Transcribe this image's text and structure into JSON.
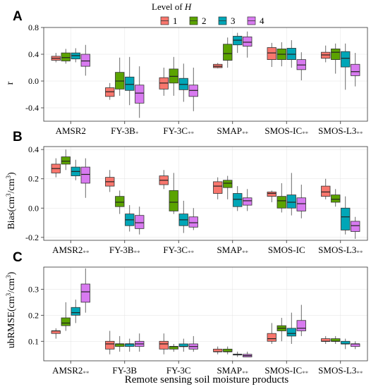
{
  "legend": {
    "title_prefix": "Level of ",
    "title_var": "H",
    "levels": [
      "1",
      "2",
      "3",
      "4"
    ],
    "colors": [
      "#F8766D",
      "#5BA300",
      "#00A6B7",
      "#D87AF0"
    ]
  },
  "x_axis_label": "Remote sensing soil moisture products",
  "marker": "**",
  "marker_single": "*",
  "chart_data": [
    {
      "type": "box",
      "panel": "A",
      "ylabel": "r",
      "ylim": [
        -0.6,
        0.8
      ],
      "yticks": [
        -0.4,
        0.0,
        0.4,
        0.8
      ],
      "ytick_labels": [
        "-0.4",
        "0.0",
        "0.4",
        "0.8"
      ],
      "categories": [
        {
          "name": "AMSR2",
          "mark": ""
        },
        {
          "name": "FY-3B",
          "mark": "*"
        },
        {
          "name": "FY-3C",
          "mark": "**"
        },
        {
          "name": "SMAP",
          "mark": "**"
        },
        {
          "name": "SMOS-IC",
          "mark": "**"
        },
        {
          "name": "SMOS-L3",
          "mark": "**"
        }
      ],
      "boxes": [
        [
          [
            0.28,
            0.31,
            0.34,
            0.37,
            0.42
          ],
          [
            0.26,
            0.3,
            0.35,
            0.42,
            0.48
          ],
          [
            0.28,
            0.33,
            0.38,
            0.42,
            0.49
          ],
          [
            0.08,
            0.22,
            0.3,
            0.4,
            0.54
          ]
        ],
        [
          [
            -0.28,
            -0.23,
            -0.16,
            -0.1,
            -0.03
          ],
          [
            -0.22,
            -0.12,
            0.0,
            0.13,
            0.35
          ],
          [
            -0.36,
            -0.14,
            -0.05,
            0.06,
            0.36
          ],
          [
            -0.55,
            -0.33,
            -0.18,
            -0.06,
            0.22
          ]
        ],
        [
          [
            -0.22,
            -0.12,
            -0.03,
            0.05,
            0.2
          ],
          [
            -0.22,
            -0.03,
            0.07,
            0.18,
            0.36
          ],
          [
            -0.31,
            -0.13,
            -0.05,
            0.04,
            0.26
          ],
          [
            -0.45,
            -0.23,
            -0.14,
            -0.06,
            0.2
          ]
        ],
        [
          [
            0.19,
            0.2,
            0.22,
            0.25,
            0.27
          ],
          [
            0.2,
            0.31,
            0.41,
            0.55,
            0.65
          ],
          [
            0.42,
            0.54,
            0.61,
            0.67,
            0.72
          ],
          [
            0.35,
            0.52,
            0.58,
            0.66,
            0.74
          ]
        ],
        [
          [
            0.21,
            0.32,
            0.42,
            0.5,
            0.57
          ],
          [
            0.22,
            0.32,
            0.4,
            0.48,
            0.58
          ],
          [
            0.2,
            0.32,
            0.4,
            0.49,
            0.61
          ],
          [
            0.01,
            0.17,
            0.24,
            0.32,
            0.43
          ]
        ],
        [
          [
            0.28,
            0.34,
            0.39,
            0.43,
            0.53
          ],
          [
            0.11,
            0.32,
            0.43,
            0.48,
            0.56
          ],
          [
            -0.13,
            0.21,
            0.34,
            0.44,
            0.56
          ],
          [
            -0.08,
            0.08,
            0.14,
            0.25,
            0.42
          ]
        ]
      ]
    },
    {
      "type": "box",
      "panel": "B",
      "ylabel_main": "Bias(cm",
      "ylabel_sup1": "3",
      "ylabel_mid": "/cm",
      "ylabel_sup2": "3",
      "ylabel_end": ")",
      "ylim": [
        -0.22,
        0.42
      ],
      "yticks": [
        -0.2,
        0.0,
        0.2,
        0.4
      ],
      "ytick_labels": [
        "-0.2",
        "0.0",
        "0.2",
        "0.4"
      ],
      "categories": [
        {
          "name": "AMSR2",
          "mark": "**"
        },
        {
          "name": "FY-3B",
          "mark": "**"
        },
        {
          "name": "FY-3C",
          "mark": "**"
        },
        {
          "name": "SMAP",
          "mark": "**"
        },
        {
          "name": "SMOS-IC",
          "mark": ""
        },
        {
          "name": "SMOS-L3",
          "mark": "**"
        }
      ],
      "boxes": [
        [
          [
            0.21,
            0.24,
            0.27,
            0.3,
            0.34
          ],
          [
            0.26,
            0.3,
            0.32,
            0.35,
            0.4
          ],
          [
            0.19,
            0.22,
            0.25,
            0.28,
            0.33
          ],
          [
            0.07,
            0.17,
            0.23,
            0.28,
            0.34
          ]
        ],
        [
          [
            0.11,
            0.15,
            0.18,
            0.21,
            0.26
          ],
          [
            -0.04,
            0.01,
            0.04,
            0.08,
            0.12
          ],
          [
            -0.16,
            -0.12,
            -0.08,
            -0.04,
            0.02
          ],
          [
            -0.18,
            -0.14,
            -0.1,
            -0.05,
            0.01
          ]
        ],
        [
          [
            0.13,
            0.16,
            0.19,
            0.22,
            0.26
          ],
          [
            -0.04,
            -0.02,
            0.04,
            0.12,
            0.24
          ],
          [
            -0.17,
            -0.12,
            -0.08,
            -0.04,
            0.05
          ],
          [
            -0.15,
            -0.13,
            -0.1,
            -0.06,
            0.0
          ]
        ],
        [
          [
            0.06,
            0.1,
            0.15,
            0.18,
            0.21
          ],
          [
            0.06,
            0.14,
            0.17,
            0.19,
            0.22
          ],
          [
            -0.02,
            0.01,
            0.06,
            0.1,
            0.15
          ],
          [
            -0.02,
            0.02,
            0.05,
            0.07,
            0.13
          ]
        ],
        [
          [
            0.04,
            0.08,
            0.1,
            0.11,
            0.12
          ],
          [
            -0.03,
            0.0,
            0.05,
            0.08,
            0.17
          ],
          [
            -0.05,
            0.0,
            0.04,
            0.09,
            0.24
          ],
          [
            -0.07,
            -0.02,
            0.03,
            0.07,
            0.16
          ]
        ],
        [
          [
            0.06,
            0.08,
            0.11,
            0.15,
            0.2
          ],
          [
            0.01,
            0.04,
            0.06,
            0.09,
            0.13
          ],
          [
            -0.18,
            -0.15,
            -0.06,
            0.0,
            0.08
          ],
          [
            -0.21,
            -0.16,
            -0.12,
            -0.09,
            -0.06
          ]
        ]
      ]
    },
    {
      "type": "box",
      "panel": "C",
      "ylabel_main": "ubRMSE(cm",
      "ylabel_sup1": "3",
      "ylabel_mid": "/cm",
      "ylabel_sup2": "3",
      "ylabel_end": ")",
      "ylim": [
        0.025,
        0.385
      ],
      "yticks": [
        0.1,
        0.2,
        0.3
      ],
      "ytick_labels": [
        "0.1",
        "0.2",
        "0.3"
      ],
      "categories": [
        {
          "name": "AMSR2",
          "mark": "**"
        },
        {
          "name": "FY-3B",
          "mark": ""
        },
        {
          "name": "FY-3C",
          "mark": ""
        },
        {
          "name": "SMAP",
          "mark": "**"
        },
        {
          "name": "SMOS-IC",
          "mark": "**"
        },
        {
          "name": "SMOS-L3",
          "mark": "**"
        }
      ],
      "boxes": [
        [
          [
            0.11,
            0.13,
            0.14,
            0.14,
            0.15
          ],
          [
            0.14,
            0.16,
            0.17,
            0.19,
            0.25
          ],
          [
            0.17,
            0.2,
            0.21,
            0.23,
            0.26
          ],
          [
            0.21,
            0.25,
            0.29,
            0.32,
            0.38
          ]
        ],
        [
          [
            0.05,
            0.07,
            0.09,
            0.1,
            0.14
          ],
          [
            0.06,
            0.08,
            0.09,
            0.09,
            0.12
          ],
          [
            0.06,
            0.08,
            0.09,
            0.09,
            0.11
          ],
          [
            0.06,
            0.08,
            0.09,
            0.1,
            0.13
          ]
        ],
        [
          [
            0.05,
            0.07,
            0.09,
            0.1,
            0.13
          ],
          [
            0.06,
            0.07,
            0.08,
            0.08,
            0.09
          ],
          [
            0.06,
            0.08,
            0.08,
            0.09,
            0.11
          ],
          [
            0.06,
            0.07,
            0.08,
            0.09,
            0.12
          ]
        ],
        [
          [
            0.05,
            0.06,
            0.06,
            0.07,
            0.08
          ],
          [
            0.05,
            0.06,
            0.06,
            0.07,
            0.08
          ],
          [
            0.04,
            0.05,
            0.05,
            0.05,
            0.06
          ],
          [
            0.04,
            0.04,
            0.045,
            0.05,
            0.06
          ]
        ],
        [
          [
            0.09,
            0.1,
            0.11,
            0.13,
            0.17
          ],
          [
            0.1,
            0.14,
            0.15,
            0.16,
            0.19
          ],
          [
            0.09,
            0.12,
            0.13,
            0.15,
            0.21
          ],
          [
            0.12,
            0.14,
            0.15,
            0.18,
            0.24
          ]
        ],
        [
          [
            0.09,
            0.1,
            0.1,
            0.11,
            0.12
          ],
          [
            0.09,
            0.1,
            0.1,
            0.11,
            0.12
          ],
          [
            0.07,
            0.09,
            0.09,
            0.1,
            0.11
          ],
          [
            0.07,
            0.08,
            0.09,
            0.09,
            0.1
          ]
        ]
      ]
    }
  ]
}
